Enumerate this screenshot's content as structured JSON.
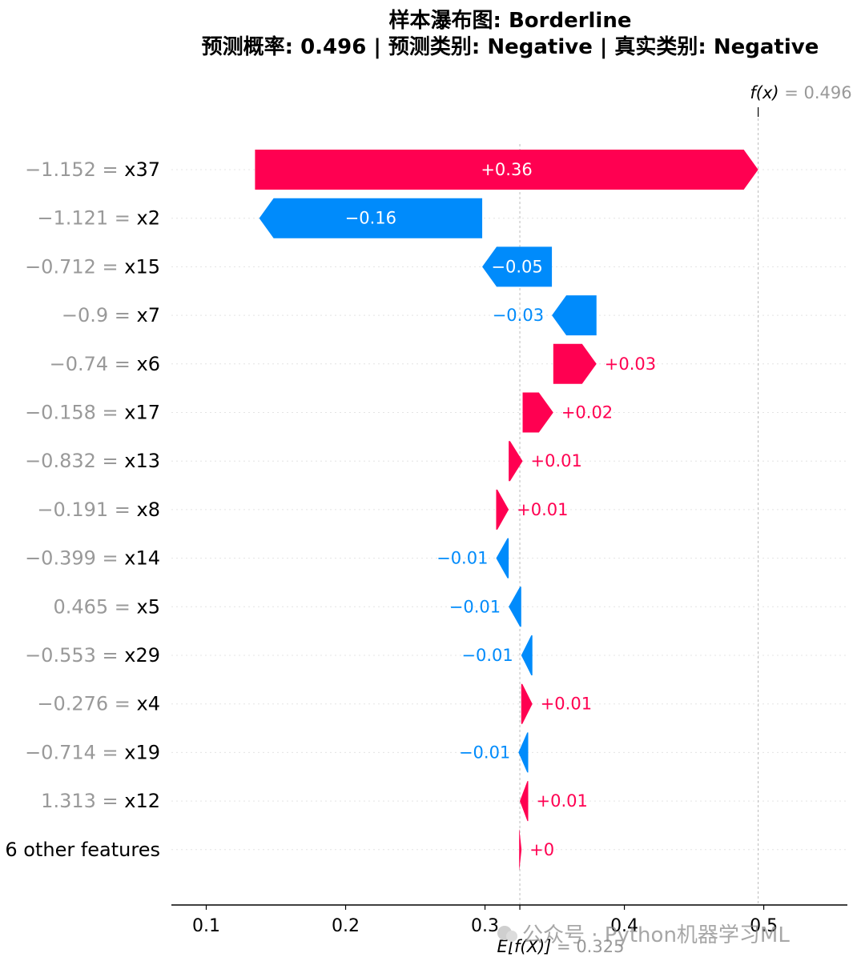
{
  "chart_data": {
    "type": "waterfall",
    "title": "样本瀑布图: Borderline",
    "subtitle": "预测概率: 0.496 | 预测类别: Negative | 真实类别: Negative",
    "base_value": 0.325,
    "base_label": "E[f(X)] = 0.325",
    "output_value": 0.496,
    "output_label": "f(x) = 0.496",
    "xlim": [
      0.075,
      0.56
    ],
    "xticks": [
      "0.1",
      "0.2",
      "0.3",
      "0.4",
      "0.5"
    ],
    "colors": {
      "positive": "#ff0051",
      "negative": "#008bfb",
      "axis_text_value": "#999999"
    },
    "features": [
      {
        "value_text": "−1.152",
        "name": "x37",
        "start": 0.135,
        "end": 0.496,
        "label": "+0.36",
        "sign": "pos"
      },
      {
        "value_text": "−1.121",
        "name": "x2",
        "start": 0.298,
        "end": 0.138,
        "label": "−0.16",
        "sign": "neg"
      },
      {
        "value_text": "−0.712",
        "name": "x15",
        "start": 0.348,
        "end": 0.298,
        "label": "−0.05",
        "sign": "neg"
      },
      {
        "value_text": "−0.9",
        "name": "x7",
        "start": 0.38,
        "end": 0.348,
        "label": "−0.03",
        "sign": "neg"
      },
      {
        "value_text": "−0.74",
        "name": "x6",
        "start": 0.349,
        "end": 0.38,
        "label": "+0.03",
        "sign": "pos"
      },
      {
        "value_text": "−0.158",
        "name": "x17",
        "start": 0.327,
        "end": 0.349,
        "label": "+0.02",
        "sign": "pos"
      },
      {
        "value_text": "−0.832",
        "name": "x13",
        "start": 0.317,
        "end": 0.327,
        "label": "+0.01",
        "sign": "pos"
      },
      {
        "value_text": "−0.191",
        "name": "x8",
        "start": 0.308,
        "end": 0.317,
        "label": "+0.01",
        "sign": "pos"
      },
      {
        "value_text": "−0.399",
        "name": "x14",
        "start": 0.317,
        "end": 0.308,
        "label": "−0.01",
        "sign": "neg"
      },
      {
        "value_text": "0.465",
        "name": "x5",
        "start": 0.326,
        "end": 0.317,
        "label": "−0.01",
        "sign": "neg"
      },
      {
        "value_text": "−0.553",
        "name": "x29",
        "start": 0.334,
        "end": 0.326,
        "label": "−0.01",
        "sign": "neg"
      },
      {
        "value_text": "−0.276",
        "name": "x4",
        "start": 0.326,
        "end": 0.334,
        "label": "+0.01",
        "sign": "pos"
      },
      {
        "value_text": "−0.714",
        "name": "x19",
        "start": 0.331,
        "end": 0.324,
        "label": "−0.01",
        "sign": "neg"
      },
      {
        "value_text": "1.313",
        "name": "x12",
        "start": 0.325,
        "end": 0.331,
        "label": "+0.01",
        "sign": "pos",
        "direction": "left"
      },
      {
        "value_text": "",
        "name": "6 other features",
        "start": 0.3245,
        "end": 0.3255,
        "label": "+0",
        "sign": "pos"
      }
    ]
  },
  "watermark": "公众号 · Python机器学习ML"
}
